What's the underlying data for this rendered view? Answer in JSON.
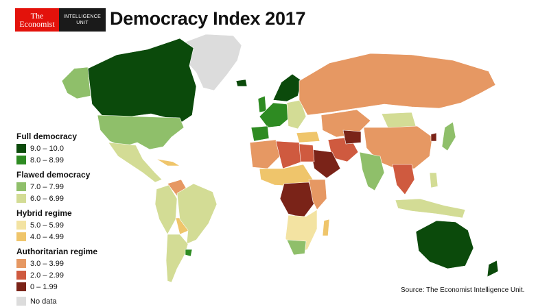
{
  "brand": {
    "logo_line1": "The",
    "logo_line2": "Economist",
    "unit_line1": "INTELLIGENCE",
    "unit_line2": "UNIT"
  },
  "title": "Democracy Index 2017",
  "legend": {
    "groups": [
      {
        "heading": "Full democracy",
        "items": [
          {
            "label": "9.0 – 10.0",
            "color": "#0b4a0b"
          },
          {
            "label": "8.0 – 8.99",
            "color": "#2e8b22"
          }
        ]
      },
      {
        "heading": "Flawed democracy",
        "items": [
          {
            "label": "7.0 – 7.99",
            "color": "#8fbf6a"
          },
          {
            "label": "6.0 – 6.99",
            "color": "#d3dc95"
          }
        ]
      },
      {
        "heading": "Hybrid regime",
        "items": [
          {
            "label": "5.0 – 5.99",
            "color": "#f3e3a2"
          },
          {
            "label": "4.0 – 4.99",
            "color": "#efc56b"
          }
        ]
      },
      {
        "heading": "Authoritarian regime",
        "items": [
          {
            "label": "3.0 – 3.99",
            "color": "#e69863"
          },
          {
            "label": "2.0 – 2.99",
            "color": "#cf5a3f"
          },
          {
            "label": "0 – 1.99",
            "color": "#7a2318"
          }
        ]
      }
    ],
    "no_data": {
      "label": "No data",
      "color": "#dcdcdc"
    }
  },
  "source": "Source: The Economist Intelligence Unit."
}
